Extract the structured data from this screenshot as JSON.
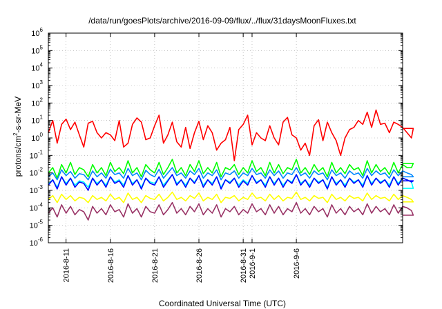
{
  "chart_data": {
    "type": "line",
    "title": "/data/run/goesPlots/archive/2016-09-09/flux/../flux/31daysMoonFluxes.txt",
    "xlabel": "Coordinated Universal Time (UTC)",
    "ylabel": "protons/cm2-s-sr-MeV",
    "ylabel_parts": {
      "pre": "protons/cm",
      "sup": "2",
      "post": "-s-sr-MeV"
    },
    "yscale": "log",
    "ylim": [
      1e-06,
      1000000.0
    ],
    "xlim_days": [
      0,
      40
    ],
    "grid": true,
    "x_ticks": [
      {
        "label": "2016-8-11",
        "day": 2
      },
      {
        "label": "2016-8-16",
        "day": 7
      },
      {
        "label": "2016-8-21",
        "day": 12
      },
      {
        "label": "2016-8-26",
        "day": 17
      },
      {
        "label": "2016-8-31",
        "day": 22
      },
      {
        "label": "2016-9-1",
        "day": 23
      },
      {
        "label": "2016-9-6",
        "day": 28
      }
    ],
    "y_ticks": [
      {
        "base": "10",
        "exp": "-6",
        "value": -6
      },
      {
        "base": "10",
        "exp": "-5",
        "value": -5
      },
      {
        "base": "10",
        "exp": "-4",
        "value": -4
      },
      {
        "base": "10",
        "exp": "-3",
        "value": -3
      },
      {
        "base": "10",
        "exp": "-2",
        "value": -2
      },
      {
        "base": "10",
        "exp": "-1",
        "value": -1
      },
      {
        "base": "10",
        "exp": "0",
        "value": 0
      },
      {
        "base": "10",
        "exp": "1",
        "value": 1
      },
      {
        "base": "10",
        "exp": "2",
        "value": 2
      },
      {
        "base": "10",
        "exp": "3",
        "value": 3
      },
      {
        "base": "10",
        "exp": "4",
        "value": 4
      },
      {
        "base": "10",
        "exp": "5",
        "value": 5
      },
      {
        "base": "10",
        "exp": "6",
        "value": 6
      }
    ],
    "series": [
      {
        "color": "#ff0000",
        "x_start_day": 0,
        "x_step_day": 0.5,
        "values": [
          2.0,
          10,
          0.5,
          6,
          12,
          3,
          8,
          1.5,
          0.3,
          7,
          9,
          2,
          1,
          2,
          1.5,
          0.7,
          10,
          0.3,
          0.5,
          6,
          14,
          8,
          0.8,
          1.0,
          5,
          20,
          0.5,
          1.5,
          8,
          0.6,
          0.3,
          4,
          0.25,
          2,
          9,
          0.8,
          5,
          2,
          0.2,
          0.5,
          0.8,
          4,
          0.05,
          3,
          6,
          20,
          0.4,
          2,
          1,
          0.7,
          5,
          1,
          0.4,
          8,
          15,
          1.5,
          1,
          0.2,
          0.5,
          0.1,
          5,
          11,
          0.7,
          8,
          2,
          0.7,
          0.1,
          1,
          3,
          4,
          10,
          6,
          30,
          4,
          40,
          6,
          7,
          2,
          8,
          6,
          4,
          2,
          1
        ],
        "end_x_day": 40,
        "end_value": 3.5
      },
      {
        "color": "#00ff00",
        "x_start_day": 0,
        "x_step_day": 0.5,
        "values": [
          0.01,
          0.02,
          0.005,
          0.03,
          0.01,
          0.04,
          0.008,
          0.02,
          0.015,
          0.006,
          0.03,
          0.01,
          0.02,
          0.007,
          0.04,
          0.012,
          0.02,
          0.009,
          0.05,
          0.01,
          0.02,
          0.006,
          0.03,
          0.015,
          0.01,
          0.04,
          0.008,
          0.02,
          0.06,
          0.01,
          0.02,
          0.007,
          0.03,
          0.012,
          0.05,
          0.009,
          0.02,
          0.01,
          0.04,
          0.006,
          0.02,
          0.015,
          0.03,
          0.008,
          0.02,
          0.01,
          0.05,
          0.012,
          0.02,
          0.007,
          0.04,
          0.01,
          0.03,
          0.009,
          0.02,
          0.015,
          0.06,
          0.01,
          0.02,
          0.008,
          0.03,
          0.012,
          0.02,
          0.006,
          0.04,
          0.01,
          0.02,
          0.009,
          0.03,
          0.015,
          0.02,
          0.007,
          0.05,
          0.01,
          0.03,
          0.012,
          0.02,
          0.008,
          0.04,
          0.01,
          0.03,
          0.02,
          0.02
        ],
        "end_x_day": 40,
        "end_value": 0.035
      },
      {
        "color": "#00ffff",
        "x_start_day": 0,
        "x_step_day": 0.5,
        "values": [
          0.0025,
          0.004,
          0.0015,
          0.006,
          0.0025,
          0.005,
          0.002,
          0.0035,
          0.003,
          0.0015,
          0.005,
          0.0025,
          0.004,
          0.002,
          0.006,
          0.003,
          0.004,
          0.002,
          0.007,
          0.0025,
          0.004,
          0.0015,
          0.005,
          0.003,
          0.0025,
          0.006,
          0.002,
          0.004,
          0.008,
          0.0025,
          0.004,
          0.002,
          0.005,
          0.003,
          0.007,
          0.002,
          0.004,
          0.0025,
          0.006,
          0.0015,
          0.004,
          0.003,
          0.005,
          0.002,
          0.004,
          0.0025,
          0.007,
          0.003,
          0.004,
          0.002,
          0.006,
          0.0025,
          0.005,
          0.002,
          0.004,
          0.003,
          0.008,
          0.0025,
          0.004,
          0.002,
          0.005,
          0.003,
          0.004,
          0.0015,
          0.006,
          0.0025,
          0.004,
          0.002,
          0.005,
          0.003,
          0.004,
          0.002,
          0.007,
          0.0025,
          0.005,
          0.003,
          0.004,
          0.002,
          0.006,
          0.0025,
          0.005,
          0.004,
          0.003
        ],
        "end_x_day": 40,
        "end_value": 0.0013
      },
      {
        "color": "#0088ff",
        "x_start_day": 0,
        "x_step_day": 0.5,
        "values": [
          0.006,
          0.01,
          0.004,
          0.015,
          0.007,
          0.012,
          0.005,
          0.009,
          0.008,
          0.004,
          0.013,
          0.006,
          0.01,
          0.005,
          0.016,
          0.008,
          0.01,
          0.005,
          0.018,
          0.007,
          0.01,
          0.004,
          0.014,
          0.008,
          0.006,
          0.016,
          0.005,
          0.01,
          0.02,
          0.007,
          0.01,
          0.005,
          0.013,
          0.008,
          0.018,
          0.005,
          0.01,
          0.007,
          0.015,
          0.004,
          0.01,
          0.008,
          0.013,
          0.005,
          0.01,
          0.007,
          0.018,
          0.008,
          0.01,
          0.005,
          0.015,
          0.007,
          0.013,
          0.005,
          0.01,
          0.008,
          0.02,
          0.007,
          0.01,
          0.005,
          0.013,
          0.008,
          0.01,
          0.004,
          0.015,
          0.007,
          0.01,
          0.005,
          0.013,
          0.008,
          0.01,
          0.005,
          0.018,
          0.007,
          0.013,
          0.008,
          0.01,
          0.005,
          0.015,
          0.007,
          0.013,
          0.01,
          0.008
        ],
        "end_x_day": 40,
        "end_value": 0.006
      },
      {
        "color": "#0000ff",
        "x_start_day": 0,
        "x_step_day": 0.5,
        "values": [
          0.002,
          0.004,
          0.0012,
          0.006,
          0.002,
          0.005,
          0.0015,
          0.003,
          0.0025,
          0.001,
          0.005,
          0.002,
          0.004,
          0.0015,
          0.006,
          0.0025,
          0.0035,
          0.0015,
          0.007,
          0.002,
          0.004,
          0.0012,
          0.005,
          0.0025,
          0.002,
          0.006,
          0.0015,
          0.0035,
          0.008,
          0.002,
          0.004,
          0.0015,
          0.005,
          0.0025,
          0.007,
          0.0015,
          0.004,
          0.002,
          0.006,
          0.0012,
          0.004,
          0.0025,
          0.005,
          0.0015,
          0.0035,
          0.002,
          0.007,
          0.0025,
          0.004,
          0.0015,
          0.006,
          0.002,
          0.005,
          0.0015,
          0.004,
          0.0025,
          0.008,
          0.002,
          0.004,
          0.0015,
          0.005,
          0.0025,
          0.004,
          0.0012,
          0.006,
          0.002,
          0.004,
          0.0015,
          0.005,
          0.0025,
          0.004,
          0.0015,
          0.007,
          0.002,
          0.005,
          0.0025,
          0.004,
          0.0015,
          0.006,
          0.002,
          0.005,
          0.004,
          0.003
        ],
        "end_x_day": 40,
        "end_value": 0.0035
      },
      {
        "color": "#ffff00",
        "x_start_day": 0,
        "x_step_day": 0.5,
        "values": [
          0.0003,
          0.0005,
          0.0002,
          0.0006,
          0.0003,
          0.0005,
          0.00025,
          0.0004,
          0.00035,
          0.0002,
          0.0005,
          0.0003,
          0.0004,
          0.00025,
          0.0006,
          0.0003,
          0.0004,
          0.0002,
          0.0007,
          0.0003,
          0.0004,
          0.0002,
          0.0005,
          0.00035,
          0.0003,
          0.0006,
          0.00025,
          0.0004,
          0.0008,
          0.0003,
          0.0004,
          0.00025,
          0.0005,
          0.00035,
          0.0007,
          0.00025,
          0.0004,
          0.0003,
          0.0006,
          0.0002,
          0.0004,
          0.00035,
          0.0005,
          0.00025,
          0.0004,
          0.0003,
          0.0007,
          0.00035,
          0.0004,
          0.00025,
          0.0006,
          0.0003,
          0.0005,
          0.00025,
          0.0004,
          0.00035,
          0.0008,
          0.0003,
          0.0004,
          0.00025,
          0.0005,
          0.00035,
          0.0004,
          0.0002,
          0.0006,
          0.0003,
          0.0004,
          0.00025,
          0.0005,
          0.00035,
          0.0004,
          0.00025,
          0.0007,
          0.0003,
          0.0005,
          0.00035,
          0.0004,
          0.00025,
          0.0006,
          0.0003,
          0.0005,
          0.0004,
          0.0003
        ],
        "end_x_day": 40,
        "end_value": 0.00022
      },
      {
        "color": "#993366",
        "x_start_day": 0,
        "x_step_day": 0.5,
        "values": [
          5e-05,
          0.0001,
          3e-05,
          0.00015,
          5e-05,
          0.00012,
          4e-05,
          8e-05,
          6e-05,
          2e-05,
          0.00012,
          5e-05,
          9e-05,
          4e-05,
          0.00015,
          6e-05,
          8e-05,
          3e-05,
          0.00017,
          5e-05,
          9e-05,
          3e-05,
          0.00012,
          6e-05,
          5e-05,
          0.00015,
          4e-05,
          8e-05,
          0.0002,
          5e-05,
          9e-05,
          4e-05,
          0.00012,
          6e-05,
          0.00017,
          4e-05,
          9e-05,
          5e-05,
          0.00015,
          3e-05,
          9e-05,
          6e-05,
          0.00012,
          4e-05,
          8e-05,
          5e-05,
          0.00017,
          6e-05,
          9e-05,
          4e-05,
          0.00015,
          5e-05,
          0.00012,
          4e-05,
          9e-05,
          6e-05,
          0.0002,
          5e-05,
          9e-05,
          4e-05,
          0.00012,
          6e-05,
          9e-05,
          3e-05,
          0.00015,
          5e-05,
          9e-05,
          4e-05,
          0.00012,
          6e-05,
          9e-05,
          4e-05,
          0.00017,
          5e-05,
          0.00012,
          6e-05,
          9e-05,
          4e-05,
          0.00015,
          5e-05,
          0.00012,
          0.0001,
          7e-05
        ],
        "end_x_day": 40,
        "end_value": 3.8e-05
      }
    ]
  }
}
